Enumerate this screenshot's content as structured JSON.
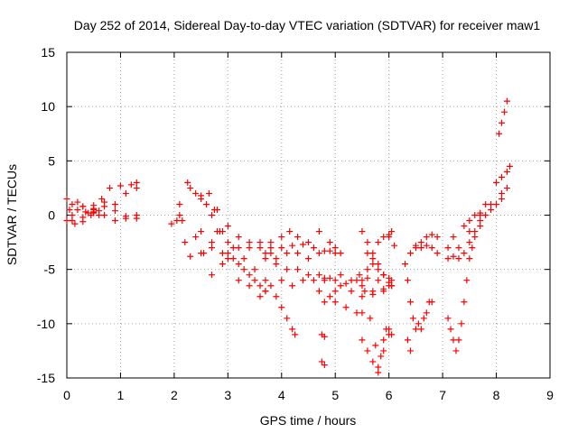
{
  "chart_data": {
    "type": "scatter",
    "title": "Day 252 of 2014, Sidereal Day-to-day VTEC variation (SDTVAR) for receiver maw1",
    "xlabel": "GPS time / hours",
    "ylabel": "SDTVAR / TECUs",
    "xlim": [
      0,
      9
    ],
    "ylim": [
      -15,
      15
    ],
    "xticks": [
      "0",
      "1",
      "2",
      "3",
      "4",
      "5",
      "6",
      "7",
      "8",
      "9"
    ],
    "yticks": [
      "15",
      "10",
      "5",
      "0",
      "-5",
      "-10",
      "-15"
    ],
    "xtick_values": [
      0,
      1,
      2,
      3,
      4,
      5,
      6,
      7,
      8,
      9
    ],
    "ytick_values": [
      15,
      10,
      5,
      0,
      -5,
      -10,
      -15
    ],
    "grid": true,
    "marker": "plus",
    "color": "#ff0000",
    "tracks": [
      {
        "points": [
          [
            0.0,
            1.5
          ],
          [
            0.1,
            1.0
          ],
          [
            0.2,
            0.5
          ],
          [
            0.3,
            0.8
          ],
          [
            0.4,
            0.2
          ],
          [
            0.5,
            0.6
          ],
          [
            0.6,
            0.0
          ]
        ]
      },
      {
        "points": [
          [
            0.0,
            -0.5
          ],
          [
            0.15,
            -0.8
          ],
          [
            0.3,
            -0.2
          ],
          [
            0.45,
            0.0
          ],
          [
            0.6,
            0.4
          ]
        ]
      },
      {
        "points": [
          [
            0.05,
            0.5
          ],
          [
            0.2,
            1.2
          ],
          [
            0.35,
            0.3
          ],
          [
            0.5,
            0.9
          ],
          [
            0.65,
            1.5
          ],
          [
            0.8,
            2.5
          ],
          [
            1.0,
            2.7
          ],
          [
            1.2,
            2.8
          ],
          [
            1.3,
            3.0
          ]
        ]
      },
      {
        "points": [
          [
            0.5,
            0.5
          ],
          [
            0.7,
            0.0
          ],
          [
            0.9,
            -0.5
          ],
          [
            1.1,
            -0.3
          ],
          [
            1.3,
            0.0
          ]
        ]
      },
      {
        "points": [
          [
            0.1,
            -0.5
          ],
          [
            0.3,
            0.8
          ],
          [
            0.5,
            0.3
          ],
          [
            0.7,
            1.2
          ],
          [
            0.9,
            0.4
          ],
          [
            1.1,
            -0.1
          ],
          [
            1.3,
            -0.3
          ]
        ]
      },
      {
        "points": [
          [
            0.1,
            0.0
          ],
          [
            0.3,
            -0.6
          ],
          [
            0.5,
            0.2
          ],
          [
            0.7,
            0.8
          ],
          [
            0.9,
            1.0
          ],
          [
            1.1,
            2.0
          ],
          [
            1.3,
            2.5
          ]
        ]
      },
      {
        "points": [
          [
            1.95,
            -0.8
          ],
          [
            2.05,
            -0.5
          ],
          [
            2.1,
            0.0
          ]
        ]
      },
      {
        "points": [
          [
            2.1,
            1.0
          ],
          [
            2.15,
            -0.5
          ],
          [
            2.2,
            -2.5
          ],
          [
            2.3,
            -3.8
          ],
          [
            2.5,
            -3.5
          ],
          [
            2.7,
            -3.0
          ],
          [
            2.9,
            -3.5
          ],
          [
            3.1,
            -4.0
          ],
          [
            3.3,
            -5.0
          ],
          [
            3.5,
            -6.0
          ],
          [
            3.7,
            -4.0
          ],
          [
            3.8,
            -3.0
          ]
        ]
      },
      {
        "points": [
          [
            2.25,
            3.0
          ],
          [
            2.4,
            2.0
          ],
          [
            2.6,
            1.0
          ],
          [
            2.8,
            0.5
          ],
          [
            3.0,
            -1.0
          ],
          [
            3.2,
            -2.0
          ],
          [
            3.4,
            -3.0
          ],
          [
            3.6,
            -2.5
          ],
          [
            3.7,
            -3.5
          ]
        ]
      },
      {
        "points": [
          [
            2.3,
            2.5
          ],
          [
            2.5,
            1.8
          ],
          [
            2.7,
            0.0
          ],
          [
            2.9,
            -1.5
          ],
          [
            3.1,
            -3.0
          ],
          [
            3.3,
            -4.0
          ],
          [
            3.5,
            -5.0
          ],
          [
            3.7,
            -7.0
          ],
          [
            3.8,
            -6.5
          ]
        ]
      },
      {
        "points": [
          [
            2.5,
            1.5
          ],
          [
            2.65,
            2.0
          ],
          [
            2.75,
            0.5
          ],
          [
            2.85,
            -1.5
          ],
          [
            3.0,
            -4.0
          ],
          [
            3.2,
            -6.0
          ],
          [
            3.4,
            -6.5
          ],
          [
            3.6,
            -7.5
          ],
          [
            3.7,
            -7.0
          ]
        ]
      },
      {
        "points": [
          [
            2.4,
            -2.0
          ],
          [
            2.55,
            -3.5
          ],
          [
            2.7,
            -5.5
          ],
          [
            2.9,
            -4.5
          ],
          [
            3.0,
            -3.5
          ],
          [
            3.2,
            -4.5
          ],
          [
            3.4,
            -5.5
          ],
          [
            3.6,
            -6.5
          ],
          [
            3.7,
            -6.0
          ]
        ]
      },
      {
        "points": [
          [
            2.5,
            -1.5
          ],
          [
            2.7,
            -2.5
          ],
          [
            2.8,
            -1.5
          ],
          [
            3.0,
            -2.5
          ],
          [
            3.2,
            -3.0
          ],
          [
            3.4,
            -2.5
          ],
          [
            3.6,
            -3.0
          ],
          [
            3.8,
            -3.5
          ]
        ]
      },
      {
        "points": [
          [
            3.8,
            -2.5
          ],
          [
            4.0,
            -3.0
          ],
          [
            4.2,
            -2.8
          ],
          [
            4.4,
            -2.7
          ],
          [
            4.6,
            -3.0
          ],
          [
            4.8,
            -3.3
          ],
          [
            5.0,
            -3.5
          ]
        ]
      },
      {
        "points": [
          [
            3.9,
            -4.0
          ],
          [
            4.1,
            -3.5
          ],
          [
            4.3,
            -3.5
          ],
          [
            4.5,
            -4.0
          ],
          [
            4.7,
            -3.5
          ],
          [
            4.9,
            -3.3
          ],
          [
            5.1,
            -3.5
          ]
        ]
      },
      {
        "points": [
          [
            4.0,
            -2.0
          ],
          [
            4.15,
            -1.5
          ],
          [
            4.3,
            -2.0
          ],
          [
            4.5,
            -2.5
          ],
          [
            4.7,
            -1.5
          ],
          [
            4.9,
            -2.5
          ],
          [
            5.0,
            -3.0
          ]
        ]
      },
      {
        "points": [
          [
            3.9,
            -4.5
          ],
          [
            4.1,
            -5.0
          ],
          [
            4.3,
            -5.0
          ],
          [
            4.5,
            -5.5
          ],
          [
            4.7,
            -5.5
          ],
          [
            4.9,
            -5.8
          ],
          [
            5.1,
            -5.5
          ],
          [
            5.3,
            -6.0
          ],
          [
            5.5,
            -6.5
          ],
          [
            5.7,
            -7.0
          ],
          [
            5.9,
            -6.8
          ],
          [
            6.05,
            -6.5
          ]
        ]
      },
      {
        "points": [
          [
            4.0,
            -6.0
          ],
          [
            4.2,
            -6.5
          ],
          [
            4.4,
            -6.0
          ],
          [
            4.6,
            -6.0
          ],
          [
            4.8,
            -5.8
          ],
          [
            5.0,
            -6.0
          ],
          [
            5.2,
            -6.3
          ],
          [
            5.4,
            -6.0
          ],
          [
            5.6,
            -5.8
          ],
          [
            5.8,
            -6.0
          ],
          [
            6.0,
            -6.2
          ]
        ]
      },
      {
        "points": [
          [
            4.7,
            -7.0
          ],
          [
            4.8,
            -8.0
          ],
          [
            4.9,
            -7.5
          ],
          [
            5.0,
            -7.0
          ],
          [
            5.1,
            -6.5
          ],
          [
            5.3,
            -7.0
          ],
          [
            5.5,
            -7.5
          ],
          [
            5.7,
            -7.3
          ],
          [
            5.9,
            -7.0
          ],
          [
            6.05,
            -6.5
          ]
        ]
      },
      {
        "points": [
          [
            4.8,
            -6.0
          ],
          [
            5.0,
            -8.0
          ],
          [
            5.2,
            -8.5
          ],
          [
            5.4,
            -9.0
          ],
          [
            5.5,
            -9.0
          ]
        ]
      },
      {
        "points": [
          [
            5.45,
            -5.5
          ],
          [
            5.55,
            -7.0
          ],
          [
            5.65,
            -9.5
          ],
          [
            5.75,
            -12.0
          ],
          [
            5.8,
            -14.5
          ],
          [
            5.85,
            -13.0
          ],
          [
            5.9,
            -11.5
          ],
          [
            5.95,
            -10.5
          ],
          [
            6.0,
            -10.5
          ]
        ]
      },
      {
        "points": [
          [
            5.6,
            -3.5
          ],
          [
            5.7,
            -4.5
          ],
          [
            5.8,
            -5.0
          ],
          [
            5.9,
            -5.5
          ],
          [
            6.0,
            -5.8
          ]
        ]
      },
      {
        "points": [
          [
            5.5,
            -6.0
          ],
          [
            5.6,
            -5.0
          ],
          [
            5.7,
            -4.0
          ],
          [
            5.8,
            -2.5
          ],
          [
            5.9,
            -2.0
          ],
          [
            6.0,
            -1.8
          ],
          [
            6.05,
            -1.5
          ]
        ]
      },
      {
        "points": [
          [
            5.5,
            -11.5
          ],
          [
            5.6,
            -12.5
          ],
          [
            5.7,
            -13.5
          ],
          [
            5.8,
            -14.0
          ],
          [
            5.9,
            -12.5
          ],
          [
            6.0,
            -11.0
          ],
          [
            6.05,
            -11.0
          ]
        ]
      },
      {
        "points": [
          [
            5.5,
            -1.5
          ],
          [
            5.6,
            -2.5
          ],
          [
            5.7,
            -3.5
          ],
          [
            5.8,
            -4.5
          ],
          [
            5.9,
            -5.5
          ],
          [
            6.0,
            -6.5
          ],
          [
            6.05,
            -6.0
          ]
        ]
      },
      {
        "points": [
          [
            3.9,
            -7.5
          ],
          [
            4.0,
            -8.5
          ],
          [
            4.1,
            -9.5
          ],
          [
            4.2,
            -10.5
          ],
          [
            4.25,
            -11.0
          ]
        ]
      },
      {
        "points": [
          [
            4.75,
            -13.5
          ],
          [
            4.8,
            -13.8
          ]
        ]
      },
      {
        "points": [
          [
            4.75,
            -11.0
          ],
          [
            4.8,
            -11.2
          ]
        ]
      },
      {
        "points": [
          [
            6.0,
            -2.0
          ],
          [
            6.1,
            -2.8
          ]
        ]
      },
      {
        "points": [
          [
            6.3,
            -4.5
          ],
          [
            6.35,
            -6.0
          ],
          [
            6.4,
            -8.0
          ],
          [
            6.45,
            -9.5
          ],
          [
            6.5,
            -10.5
          ],
          [
            6.55,
            -10.0
          ],
          [
            6.6,
            -10.5
          ],
          [
            6.65,
            -9.5
          ],
          [
            6.7,
            -9.0
          ],
          [
            6.75,
            -8.0
          ],
          [
            6.8,
            -8.0
          ]
        ]
      },
      {
        "points": [
          [
            6.35,
            -11.5
          ],
          [
            6.4,
            -12.5
          ]
        ]
      },
      {
        "points": [
          [
            6.4,
            -3.5
          ],
          [
            6.5,
            -3.0
          ],
          [
            6.6,
            -3.0
          ],
          [
            6.7,
            -2.8
          ],
          [
            6.8,
            -3.0
          ],
          [
            6.9,
            -3.5
          ]
        ]
      },
      {
        "points": [
          [
            6.5,
            -2.8
          ],
          [
            6.6,
            -2.5
          ],
          [
            6.7,
            -2.0
          ],
          [
            6.8,
            -1.8
          ],
          [
            6.9,
            -2.0
          ]
        ]
      },
      {
        "points": [
          [
            7.1,
            -9.5
          ],
          [
            7.15,
            -10.5
          ],
          [
            7.2,
            -11.5
          ],
          [
            7.25,
            -12.5
          ],
          [
            7.3,
            -11.5
          ],
          [
            7.35,
            -10.0
          ],
          [
            7.4,
            -8.0
          ],
          [
            7.45,
            -6.0
          ],
          [
            7.5,
            -4.0
          ],
          [
            7.55,
            -3.0
          ],
          [
            7.6,
            -2.0
          ],
          [
            7.7,
            -1.0
          ]
        ]
      },
      {
        "points": [
          [
            7.1,
            -3.0
          ],
          [
            7.2,
            -3.8
          ],
          [
            7.3,
            -4.0
          ],
          [
            7.4,
            -3.5
          ],
          [
            7.5,
            -2.5
          ],
          [
            7.6,
            -1.5
          ],
          [
            7.7,
            -0.5
          ],
          [
            7.8,
            0.0
          ]
        ]
      },
      {
        "points": [
          [
            7.1,
            -4.0
          ],
          [
            7.3,
            -3.0
          ],
          [
            7.5,
            -1.5
          ],
          [
            7.7,
            0.0
          ],
          [
            7.9,
            0.5
          ],
          [
            8.0,
            1.0
          ],
          [
            8.1,
            1.5
          ],
          [
            8.2,
            2.5
          ]
        ]
      },
      {
        "points": [
          [
            7.2,
            -2.0
          ],
          [
            7.4,
            -1.0
          ],
          [
            7.6,
            0.0
          ],
          [
            7.8,
            1.0
          ],
          [
            8.0,
            3.0
          ],
          [
            8.1,
            3.5
          ],
          [
            8.2,
            4.0
          ],
          [
            8.25,
            4.5
          ]
        ]
      },
      {
        "points": [
          [
            7.5,
            -0.5
          ],
          [
            7.7,
            0.2
          ],
          [
            7.9,
            1.0
          ],
          [
            8.1,
            2.0
          ]
        ]
      },
      {
        "points": [
          [
            8.05,
            7.5
          ],
          [
            8.1,
            8.5
          ],
          [
            8.15,
            9.5
          ],
          [
            8.2,
            10.5
          ]
        ]
      }
    ]
  }
}
